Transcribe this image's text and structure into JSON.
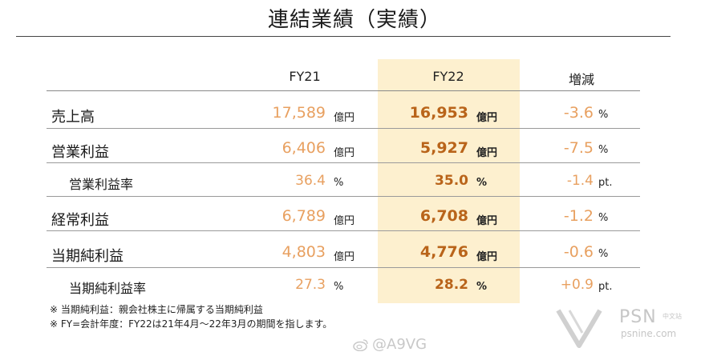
{
  "title": "連結業績（実績）",
  "columns": {
    "fy21": "FY21",
    "fy22": "FY22",
    "diff": "増減"
  },
  "rows": [
    {
      "label": "売上高",
      "fy21": "17,589",
      "fy21_unit": "億円",
      "fy22": "16,953",
      "fy22_unit": "億円",
      "diff": "-3.6",
      "diff_unit": "%"
    },
    {
      "label": "営業利益",
      "fy21": "6,406",
      "fy21_unit": "億円",
      "fy22": "5,927",
      "fy22_unit": "億円",
      "diff": "-7.5",
      "diff_unit": "%"
    },
    {
      "label": "営業利益率",
      "fy21": "36.4",
      "fy21_unit": "%",
      "fy22": "35.0",
      "fy22_unit": "%",
      "diff": "-1.4",
      "diff_unit": "pt."
    },
    {
      "label": "経常利益",
      "fy21": "6,789",
      "fy21_unit": "億円",
      "fy22": "6,708",
      "fy22_unit": "億円",
      "diff": "-1.2",
      "diff_unit": "%"
    },
    {
      "label": "当期純利益",
      "fy21": "4,803",
      "fy21_unit": "億円",
      "fy22": "4,776",
      "fy22_unit": "億円",
      "diff": "-0.6",
      "diff_unit": "%"
    },
    {
      "label": "当期純利益率",
      "fy21": "27.3",
      "fy21_unit": "%",
      "fy22": "28.2",
      "fy22_unit": "%",
      "diff": "+0.9",
      "diff_unit": "pt."
    }
  ],
  "notes": [
    "※ 当期純利益：親会社株主に帰属する当期純利益",
    "※ FY=会計年度：FY22は21年4月～22年3月の期間を指します。"
  ],
  "watermarks": {
    "weibo": "@A9VG",
    "psn": "PSN",
    "psn_cn": "中文站",
    "psn_url": "psnine.com"
  },
  "colors": {
    "highlight_band": "#fdf0cf",
    "fy22_value": "#b9641a",
    "other_value": "#e8a060"
  }
}
